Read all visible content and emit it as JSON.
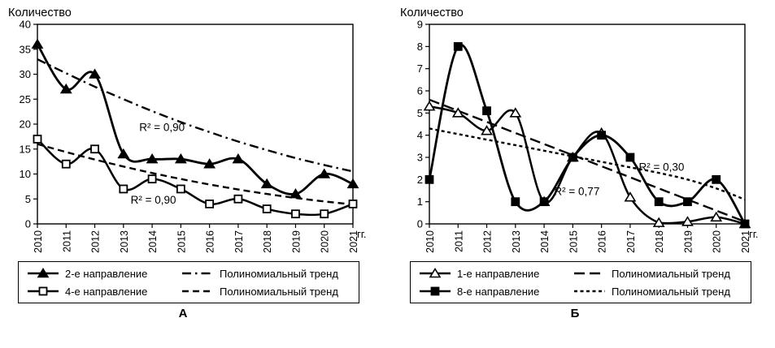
{
  "colors": {
    "ink": "#000000",
    "background": "#ffffff"
  },
  "chart_data": [
    {
      "type": "line",
      "title": "Количество",
      "x_suffix": "гг.",
      "caption": "А",
      "ylim": [
        0,
        40
      ],
      "ytick_step": 5,
      "categories": [
        "2010",
        "2011",
        "2012",
        "2013",
        "2014",
        "2015",
        "2016",
        "2017",
        "2018",
        "2019",
        "2020",
        "2021"
      ],
      "series": [
        {
          "name": "2-е направление",
          "marker": "triangle",
          "fill": "filled",
          "line": "solid",
          "values": [
            36,
            27,
            30,
            14,
            13,
            13,
            12,
            13,
            8,
            6,
            10,
            8
          ]
        },
        {
          "name": "4-е направление",
          "marker": "square",
          "fill": "open",
          "line": "solid",
          "values": [
            17,
            12,
            15,
            7,
            9,
            7,
            4,
            5,
            3,
            2,
            2,
            4
          ]
        },
        {
          "name": "Полиномиальный тренд",
          "marker": "none",
          "fill": "none",
          "line": "dashdot",
          "values": [
            33,
            30.2,
            27.5,
            25,
            22.6,
            20.4,
            18.4,
            16.5,
            14.8,
            13.2,
            11.8,
            10.5
          ]
        },
        {
          "name": "Полиномиальный тренд",
          "marker": "none",
          "fill": "none",
          "line": "dashed",
          "values": [
            16,
            14.4,
            12.9,
            11.5,
            10.2,
            9,
            7.9,
            6.9,
            6,
            5.2,
            4.5,
            3.9
          ]
        }
      ],
      "annotations": [
        {
          "text": "R² = 0,90",
          "xi": 3.55,
          "y": 18.6
        },
        {
          "text": "R² = 0,90",
          "xi": 3.25,
          "y": 4.1
        }
      ],
      "legend": [
        {
          "label": "2-е направление",
          "line": "solid",
          "marker": "triangle",
          "fill": "filled"
        },
        {
          "label": "Полиномиальный тренд",
          "line": "dashdot",
          "marker": "none",
          "fill": "none"
        },
        {
          "label": "4-е направление",
          "line": "solid",
          "marker": "square",
          "fill": "open"
        },
        {
          "label": "Полиномиальный тренд",
          "line": "dashed",
          "marker": "none",
          "fill": "none"
        }
      ]
    },
    {
      "type": "line",
      "title": "Количество",
      "x_suffix": "гг.",
      "caption": "Б",
      "ylim": [
        0,
        9
      ],
      "ytick_step": 1,
      "categories": [
        "2010",
        "2011",
        "2012",
        "2013",
        "2014",
        "2015",
        "2016",
        "2017",
        "2018",
        "2019",
        "2020",
        "2021"
      ],
      "series": [
        {
          "name": "1-е направление",
          "marker": "triangle",
          "fill": "open",
          "line": "solid",
          "values": [
            5.3,
            5,
            4.2,
            5,
            1,
            3,
            4.1,
            1.2,
            0.05,
            0.1,
            0.3,
            0
          ]
        },
        {
          "name": "8-е направление",
          "marker": "square",
          "fill": "filled",
          "line": "solid",
          "values": [
            2,
            8,
            5.1,
            1,
            1,
            3,
            4,
            3,
            1,
            1,
            2,
            0
          ]
        },
        {
          "name": "Полиномиальный тренд",
          "marker": "none",
          "fill": "none",
          "line": "longdash",
          "values": [
            5.6,
            5.1,
            4.6,
            4.1,
            3.6,
            3.1,
            2.6,
            2.1,
            1.6,
            1.1,
            0.6,
            0.1
          ]
        },
        {
          "name": "Полиномиальный тренд",
          "marker": "none",
          "fill": "none",
          "line": "dot",
          "values": [
            4.3,
            4.05,
            3.8,
            3.55,
            3.3,
            3.05,
            2.8,
            2.55,
            2.3,
            2,
            1.6,
            1.1
          ]
        }
      ],
      "annotations": [
        {
          "text": "R² = 0,77",
          "xi": 4.35,
          "y": 1.3
        },
        {
          "text": "R² = 0,30",
          "xi": 7.3,
          "y": 2.4
        }
      ],
      "legend": [
        {
          "label": "1-е направление",
          "line": "solid",
          "marker": "triangle",
          "fill": "open"
        },
        {
          "label": "Полиномиальный тренд",
          "line": "longdash",
          "marker": "none",
          "fill": "none"
        },
        {
          "label": "8-е направление",
          "line": "solid",
          "marker": "square",
          "fill": "filled"
        },
        {
          "label": "Полиномиальный тренд",
          "line": "dot",
          "marker": "none",
          "fill": "none"
        }
      ]
    }
  ]
}
